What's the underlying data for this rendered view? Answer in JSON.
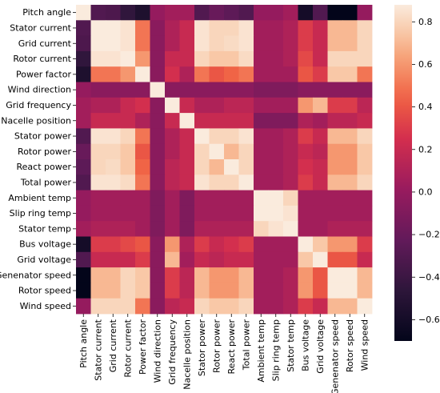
{
  "chart_data": {
    "type": "heatmap",
    "title": "",
    "xlabel": "",
    "ylabel": "",
    "labels": [
      "Pitch angle",
      "Stator current",
      "Grid current",
      "Rotor current",
      "Power factor",
      "Wind direction",
      "Grid frequency",
      "Nacelle position",
      "Stator power",
      "Rotor power",
      "React power",
      "Total power",
      "Ambient temp",
      "Slip ring temp",
      "Stator temp",
      "Bus voltage",
      "Grid voltage",
      "Genenator speed",
      "Rotor speed",
      "Wind speed"
    ],
    "value_range": [
      -0.7,
      0.88
    ],
    "colorbar_ticks": [
      "0.8",
      "0.6",
      "0.4",
      "0.2",
      "0.0",
      "−0.2",
      "−0.4",
      "−0.6"
    ],
    "colorbar_tick_values": [
      0.8,
      0.6,
      0.4,
      0.2,
      0.0,
      -0.2,
      -0.4,
      -0.6
    ],
    "colorscale": "rocket",
    "values": [
      [
        0.88,
        -0.3,
        -0.32,
        -0.45,
        -0.55,
        0.0,
        0.05,
        0.05,
        -0.3,
        -0.2,
        -0.25,
        -0.3,
        0.0,
        0.0,
        0.05,
        -0.6,
        -0.3,
        -0.7,
        -0.7,
        0.0
      ],
      [
        -0.3,
        0.88,
        0.88,
        0.85,
        0.5,
        -0.05,
        0.1,
        0.2,
        0.85,
        0.8,
        0.8,
        0.85,
        0.05,
        0.05,
        0.1,
        0.3,
        0.2,
        0.7,
        0.7,
        0.8
      ],
      [
        -0.32,
        0.88,
        0.88,
        0.85,
        0.5,
        -0.05,
        0.1,
        0.2,
        0.85,
        0.8,
        0.82,
        0.85,
        0.05,
        0.05,
        0.1,
        0.3,
        0.2,
        0.7,
        0.7,
        0.8
      ],
      [
        -0.45,
        0.85,
        0.85,
        0.88,
        0.6,
        -0.05,
        0.2,
        0.2,
        0.8,
        0.75,
        0.75,
        0.82,
        0.05,
        0.05,
        0.1,
        0.35,
        0.2,
        0.8,
        0.8,
        0.8
      ],
      [
        -0.55,
        0.5,
        0.5,
        0.6,
        0.88,
        -0.05,
        0.25,
        0.1,
        0.5,
        0.4,
        0.45,
        0.5,
        0.05,
        0.05,
        0.05,
        0.4,
        0.3,
        0.75,
        0.75,
        0.5
      ],
      [
        0.0,
        -0.05,
        -0.05,
        -0.05,
        -0.05,
        0.88,
        -0.05,
        -0.05,
        -0.05,
        -0.05,
        -0.05,
        -0.05,
        -0.1,
        -0.1,
        -0.1,
        -0.05,
        -0.05,
        -0.05,
        -0.05,
        -0.05
      ],
      [
        0.05,
        0.1,
        0.1,
        0.2,
        0.25,
        -0.05,
        0.88,
        0.2,
        0.1,
        0.1,
        0.15,
        0.15,
        0.05,
        0.05,
        0.05,
        0.6,
        0.7,
        0.3,
        0.3,
        0.15
      ],
      [
        0.05,
        0.2,
        0.2,
        0.2,
        0.1,
        -0.05,
        0.2,
        0.88,
        0.2,
        0.2,
        0.2,
        0.2,
        -0.1,
        -0.1,
        -0.1,
        0.1,
        0.05,
        0.15,
        0.15,
        0.2
      ],
      [
        -0.3,
        0.85,
        0.85,
        0.8,
        0.5,
        -0.05,
        0.1,
        0.2,
        0.88,
        0.8,
        0.8,
        0.85,
        0.05,
        0.05,
        0.1,
        0.3,
        0.2,
        0.7,
        0.7,
        0.8
      ],
      [
        -0.2,
        0.8,
        0.8,
        0.75,
        0.4,
        -0.05,
        0.1,
        0.2,
        0.8,
        0.88,
        0.7,
        0.8,
        0.05,
        0.05,
        0.1,
        0.2,
        0.15,
        0.6,
        0.6,
        0.75
      ],
      [
        -0.25,
        0.8,
        0.82,
        0.75,
        0.45,
        -0.05,
        0.15,
        0.2,
        0.8,
        0.7,
        0.88,
        0.8,
        0.05,
        0.05,
        0.1,
        0.25,
        0.2,
        0.6,
        0.6,
        0.75
      ],
      [
        -0.3,
        0.85,
        0.85,
        0.82,
        0.5,
        -0.05,
        0.15,
        0.2,
        0.85,
        0.8,
        0.8,
        0.88,
        0.05,
        0.05,
        0.1,
        0.3,
        0.2,
        0.7,
        0.7,
        0.8
      ],
      [
        0.0,
        0.05,
        0.05,
        0.05,
        0.05,
        -0.1,
        0.05,
        -0.1,
        0.05,
        0.05,
        0.05,
        0.05,
        0.88,
        0.88,
        0.8,
        0.05,
        0.05,
        0.05,
        0.05,
        0.05
      ],
      [
        0.0,
        0.05,
        0.05,
        0.05,
        0.05,
        -0.1,
        0.05,
        -0.1,
        0.05,
        0.05,
        0.05,
        0.05,
        0.88,
        0.88,
        0.85,
        0.05,
        0.05,
        0.05,
        0.05,
        0.05
      ],
      [
        0.05,
        0.1,
        0.1,
        0.1,
        0.05,
        -0.1,
        0.05,
        -0.1,
        0.1,
        0.1,
        0.1,
        0.1,
        0.8,
        0.85,
        0.88,
        0.05,
        0.05,
        0.1,
        0.1,
        0.1
      ],
      [
        -0.6,
        0.3,
        0.3,
        0.35,
        0.4,
        -0.05,
        0.6,
        0.1,
        0.3,
        0.2,
        0.25,
        0.3,
        0.05,
        0.05,
        0.05,
        0.88,
        0.75,
        0.6,
        0.6,
        0.3
      ],
      [
        -0.3,
        0.2,
        0.2,
        0.2,
        0.3,
        -0.05,
        0.7,
        0.05,
        0.2,
        0.15,
        0.2,
        0.2,
        0.05,
        0.05,
        0.05,
        0.75,
        0.88,
        0.4,
        0.4,
        0.2
      ],
      [
        -0.7,
        0.7,
        0.7,
        0.8,
        0.75,
        -0.05,
        0.3,
        0.15,
        0.7,
        0.6,
        0.6,
        0.7,
        0.05,
        0.05,
        0.1,
        0.6,
        0.4,
        0.88,
        0.88,
        0.7
      ],
      [
        -0.7,
        0.7,
        0.7,
        0.8,
        0.75,
        -0.05,
        0.3,
        0.15,
        0.7,
        0.6,
        0.6,
        0.7,
        0.05,
        0.05,
        0.1,
        0.6,
        0.4,
        0.88,
        0.88,
        0.7
      ],
      [
        0.0,
        0.8,
        0.8,
        0.8,
        0.5,
        -0.05,
        0.15,
        0.2,
        0.8,
        0.75,
        0.75,
        0.8,
        0.05,
        0.05,
        0.1,
        0.3,
        0.2,
        0.7,
        0.7,
        0.88
      ]
    ]
  }
}
